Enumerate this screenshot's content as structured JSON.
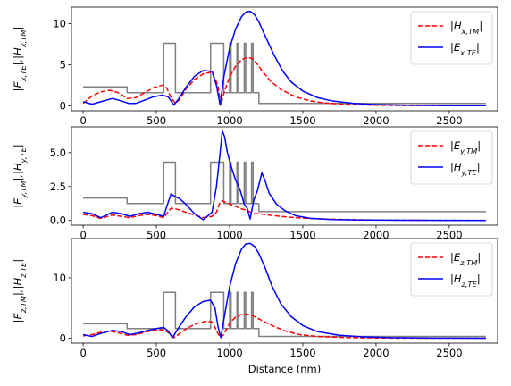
{
  "chart_data": [
    {
      "type": "line",
      "ylabel": "|E_{x,TE}|,|H_{x,TM}|",
      "xlabel": "",
      "xlim": [
        -80,
        2830
      ],
      "ylim": [
        -0.6,
        12.0
      ],
      "xticks": [
        0,
        500,
        1000,
        1500,
        2000,
        2500
      ],
      "yticks": [
        0,
        5,
        10
      ],
      "legend_position": "top-right",
      "series": [
        {
          "name": "|H_{x,TM}|",
          "color": "#ff0000",
          "style": "dashed",
          "x": [
            0,
            60,
            120,
            180,
            240,
            300,
            360,
            420,
            480,
            540,
            570,
            600,
            630,
            660,
            700,
            760,
            820,
            880,
            920,
            940,
            960,
            1000,
            1040,
            1080,
            1120,
            1150,
            1180,
            1220,
            1280,
            1350,
            1450,
            1550,
            1650,
            1800,
            2000,
            2200,
            2750
          ],
          "y": [
            0.3,
            1.2,
            1.7,
            1.9,
            1.6,
            0.9,
            1.0,
            1.6,
            2.2,
            2.5,
            2.2,
            1.0,
            0.3,
            0.8,
            2.0,
            3.2,
            3.9,
            4.1,
            2.5,
            0.1,
            1.5,
            3.5,
            4.8,
            5.6,
            5.9,
            5.8,
            5.3,
            4.3,
            3.0,
            2.0,
            1.1,
            0.6,
            0.35,
            0.18,
            0.08,
            0.04,
            0.02
          ]
        },
        {
          "name": "|E_{x,TE}|",
          "color": "#0000ff",
          "style": "solid",
          "x": [
            0,
            60,
            120,
            200,
            260,
            310,
            360,
            420,
            480,
            540,
            580,
            600,
            620,
            650,
            700,
            760,
            820,
            880,
            910,
            935,
            960,
            1000,
            1040,
            1080,
            1110,
            1140,
            1170,
            1200,
            1240,
            1300,
            1360,
            1420,
            1500,
            1600,
            1700,
            1850,
            2000,
            2200,
            2500,
            2750
          ],
          "y": [
            0.5,
            0.2,
            0.5,
            0.9,
            0.6,
            0.3,
            0.3,
            0.7,
            1.1,
            1.3,
            1.1,
            0.6,
            0.1,
            0.8,
            2.2,
            3.6,
            4.3,
            4.2,
            2.5,
            0.1,
            3.5,
            7.0,
            9.3,
            10.8,
            11.4,
            11.5,
            11.1,
            10.2,
            8.6,
            6.3,
            4.3,
            2.9,
            1.8,
            1.0,
            0.6,
            0.3,
            0.15,
            0.08,
            0.03,
            0.02
          ]
        },
        {
          "name": "",
          "color": "#808080",
          "style": "solid",
          "legend": false,
          "x": [
            0,
            300,
            300,
            550,
            550,
            630,
            630,
            870,
            870,
            960,
            960,
            1000,
            1000,
            1010,
            1010,
            1050,
            1050,
            1060,
            1060,
            1100,
            1100,
            1110,
            1110,
            1150,
            1150,
            1160,
            1160,
            1200,
            1200,
            1240,
            1240,
            2750
          ],
          "y": [
            2.3,
            2.3,
            1.6,
            1.6,
            7.6,
            7.6,
            1.6,
            1.6,
            7.6,
            7.6,
            1.6,
            1.6,
            7.6,
            7.6,
            1.6,
            1.6,
            7.6,
            7.6,
            1.6,
            1.6,
            7.6,
            7.6,
            1.6,
            1.6,
            7.6,
            7.6,
            1.6,
            1.6,
            0.3,
            0.3,
            0.3,
            0.3
          ]
        }
      ]
    },
    {
      "type": "line",
      "ylabel": "|E_{y,TM}|,|H_{y,TE}|",
      "xlabel": "",
      "xlim": [
        -80,
        2830
      ],
      "ylim": [
        -0.35,
        6.9
      ],
      "xticks": [
        0,
        500,
        1000,
        1500,
        2000,
        2500
      ],
      "yticks": [
        0.0,
        2.5,
        5.0
      ],
      "ytick_labels": [
        "0.0",
        "2.5",
        "5.0"
      ],
      "legend_position": "top-right",
      "series": [
        {
          "name": "|E_{y,TM}|",
          "color": "#ff0000",
          "style": "dashed",
          "x": [
            0,
            60,
            120,
            200,
            260,
            320,
            380,
            440,
            500,
            550,
            600,
            650,
            700,
            760,
            820,
            880,
            910,
            935,
            950,
            970,
            1000,
            1040,
            1080,
            1120,
            1160,
            1200,
            1260,
            1350,
            1450,
            1600,
            1800,
            2000,
            2300,
            2750
          ],
          "y": [
            0.45,
            0.35,
            0.15,
            0.4,
            0.3,
            0.2,
            0.35,
            0.45,
            0.35,
            0.2,
            0.9,
            0.8,
            0.6,
            0.4,
            0.2,
            0.3,
            0.6,
            1.35,
            1.45,
            1.35,
            1.2,
            1.05,
            0.85,
            0.75,
            0.5,
            0.5,
            0.4,
            0.3,
            0.2,
            0.12,
            0.06,
            0.03,
            0.01,
            0.0
          ]
        },
        {
          "name": "|H_{y,TE}|",
          "color": "#0000ff",
          "style": "solid",
          "x": [
            0,
            60,
            120,
            200,
            260,
            320,
            380,
            440,
            500,
            550,
            570,
            600,
            630,
            660,
            700,
            760,
            820,
            880,
            910,
            935,
            950,
            965,
            985,
            1010,
            1040,
            1070,
            1100,
            1120,
            1140,
            1165,
            1190,
            1220,
            1240,
            1270,
            1320,
            1380,
            1450,
            1550,
            1700,
            1900,
            2200,
            2750
          ],
          "y": [
            0.6,
            0.5,
            0.2,
            0.6,
            0.5,
            0.3,
            0.5,
            0.6,
            0.45,
            0.3,
            1.0,
            1.95,
            1.75,
            1.6,
            1.2,
            0.5,
            0.05,
            0.6,
            2.5,
            5.0,
            6.6,
            6.2,
            5.0,
            4.0,
            3.0,
            2.3,
            1.2,
            0.9,
            0.1,
            1.5,
            2.2,
            3.5,
            3.0,
            2.0,
            1.2,
            0.7,
            0.35,
            0.15,
            0.06,
            0.03,
            0.01,
            0.0
          ]
        },
        {
          "name": "",
          "color": "#808080",
          "style": "solid",
          "legend": false,
          "x": [
            0,
            300,
            300,
            550,
            550,
            630,
            630,
            870,
            870,
            960,
            960,
            1000,
            1000,
            1010,
            1010,
            1050,
            1050,
            1060,
            1060,
            1100,
            1100,
            1110,
            1110,
            1150,
            1150,
            1160,
            1160,
            1200,
            1200,
            1240,
            1240,
            2750
          ],
          "y": [
            1.65,
            1.65,
            1.25,
            1.25,
            4.3,
            4.3,
            1.25,
            1.25,
            4.3,
            4.3,
            1.25,
            1.25,
            4.3,
            4.3,
            1.25,
            1.25,
            4.3,
            4.3,
            1.25,
            1.25,
            4.3,
            4.3,
            1.25,
            1.25,
            4.3,
            4.3,
            1.25,
            1.25,
            0.65,
            0.65,
            0.65,
            0.65
          ]
        }
      ]
    },
    {
      "type": "line",
      "ylabel": "|E_{z,TM}|,|H_{z,TE}|",
      "xlabel": "Distance (nm)",
      "xlim": [
        -80,
        2830
      ],
      "ylim": [
        -0.8,
        16.5
      ],
      "xticks": [
        0,
        500,
        1000,
        1500,
        2000,
        2500
      ],
      "yticks": [
        0,
        10
      ],
      "legend_position": "top-right",
      "series": [
        {
          "name": "|E_{z,TM}|",
          "color": "#ff0000",
          "style": "dashed",
          "x": [
            0,
            60,
            120,
            180,
            240,
            300,
            360,
            420,
            480,
            550,
            590,
            620,
            660,
            720,
            780,
            840,
            880,
            900,
            920,
            940,
            960,
            1000,
            1040,
            1080,
            1120,
            1160,
            1200,
            1240,
            1300,
            1380,
            1480,
            1600,
            1800,
            2000,
            2300,
            2750
          ],
          "y": [
            0.4,
            0.6,
            1.0,
            1.2,
            0.9,
            0.5,
            0.6,
            1.0,
            1.3,
            1.4,
            0.8,
            0.1,
            0.8,
            1.8,
            2.5,
            2.8,
            2.7,
            1.8,
            0.8,
            0.1,
            0.6,
            2.5,
            3.5,
            3.9,
            4.0,
            3.7,
            3.2,
            2.7,
            2.0,
            1.2,
            0.6,
            0.3,
            0.12,
            0.05,
            0.02,
            0.01
          ]
        },
        {
          "name": "|H_{z,TE}|",
          "color": "#0000ff",
          "style": "solid",
          "x": [
            0,
            60,
            120,
            200,
            260,
            320,
            380,
            440,
            500,
            550,
            580,
            610,
            640,
            700,
            760,
            820,
            870,
            900,
            920,
            940,
            960,
            1000,
            1040,
            1080,
            1110,
            1140,
            1170,
            1200,
            1240,
            1290,
            1350,
            1420,
            1500,
            1600,
            1750,
            1900,
            2100,
            2400,
            2750
          ],
          "y": [
            0.6,
            0.3,
            0.8,
            1.3,
            1.1,
            0.6,
            0.9,
            1.3,
            1.6,
            1.8,
            1.2,
            0.1,
            1.3,
            3.5,
            5.2,
            6.1,
            6.3,
            5.0,
            2.0,
            0.1,
            3.0,
            8.5,
            12.3,
            14.7,
            15.6,
            15.7,
            15.2,
            14.0,
            11.8,
            8.6,
            5.7,
            3.6,
            2.1,
            1.1,
            0.5,
            0.25,
            0.1,
            0.04,
            0.02
          ]
        },
        {
          "name": "",
          "color": "#808080",
          "style": "solid",
          "legend": false,
          "x": [
            0,
            300,
            300,
            550,
            550,
            630,
            630,
            870,
            870,
            960,
            960,
            1000,
            1000,
            1010,
            1010,
            1050,
            1050,
            1060,
            1060,
            1100,
            1100,
            1110,
            1110,
            1150,
            1150,
            1160,
            1160,
            1200,
            1200,
            1240,
            1240,
            2750
          ],
          "y": [
            2.4,
            2.4,
            1.6,
            1.6,
            7.6,
            7.6,
            1.6,
            1.6,
            7.6,
            7.6,
            1.6,
            1.6,
            7.6,
            7.6,
            1.6,
            1.6,
            7.6,
            7.6,
            1.6,
            1.6,
            7.6,
            7.6,
            1.6,
            1.6,
            7.6,
            7.6,
            1.6,
            1.6,
            0.3,
            0.3,
            0.3,
            0.3
          ]
        }
      ]
    }
  ]
}
